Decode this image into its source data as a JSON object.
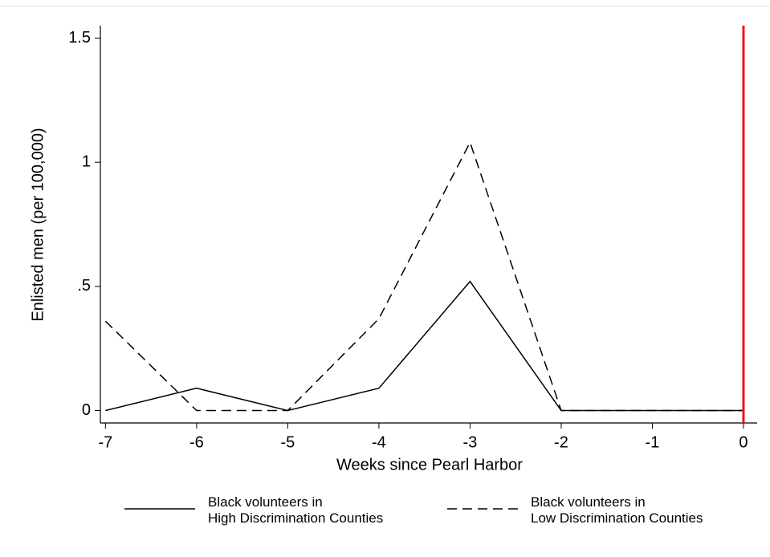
{
  "chart_data": {
    "type": "line",
    "x_label": "Weeks since Pearl Harbor",
    "y_label": "Enlisted men (per 100,000)",
    "x": [
      -7,
      -6,
      -5,
      -4,
      -3,
      -2,
      -1,
      0
    ],
    "series": [
      {
        "name": "Black volunteers in\nHigh Discrimination Counties",
        "color": "#000000",
        "dash": "solid",
        "values": [
          0,
          0.09,
          0,
          0.09,
          0.52,
          0,
          0,
          0
        ]
      },
      {
        "name": "Black volunteers in\nLow Discrimination Counties",
        "color": "#000000",
        "dash": "dashed",
        "values": [
          0.36,
          0,
          0,
          0.37,
          1.08,
          0,
          0,
          0
        ]
      }
    ],
    "vline": {
      "x": 0,
      "color": "#e8141c"
    },
    "xlim": [
      -7.1,
      0.15
    ],
    "xticks": [
      -7,
      -6,
      -5,
      -4,
      -3,
      -2,
      -1,
      0
    ],
    "ylim": [
      -0.05,
      1.55
    ],
    "yticks": [
      0,
      {
        "value": 0.5,
        "label": ".5"
      },
      1,
      1.5
    ],
    "grid": false
  }
}
